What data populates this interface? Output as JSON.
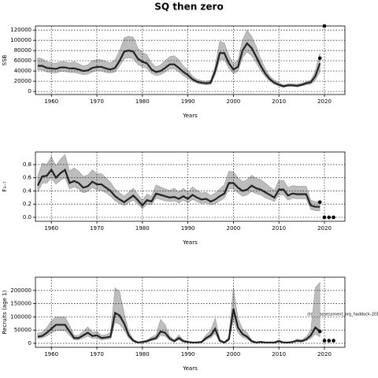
{
  "title": "SQ then zero",
  "annotation": "stock_assessment_org_haddock-201",
  "chart_data": [
    {
      "type": "line",
      "ylabel": "SSB",
      "xlabel": "Years",
      "xlim": [
        1956.5,
        2024.5
      ],
      "xticks": [
        1960,
        1970,
        1980,
        1990,
        2000,
        2010,
        2020
      ],
      "ylim": [
        -6000,
        128000
      ],
      "yticks": [
        0,
        20000,
        40000,
        60000,
        80000,
        100000,
        120000
      ],
      "grid": true,
      "color": "#222222",
      "band_color": "#bdbdbd",
      "x": [
        1957,
        1958,
        1959,
        1960,
        1961,
        1962,
        1963,
        1964,
        1965,
        1966,
        1967,
        1968,
        1969,
        1970,
        1971,
        1972,
        1973,
        1974,
        1975,
        1976,
        1977,
        1978,
        1979,
        1980,
        1981,
        1982,
        1983,
        1984,
        1985,
        1986,
        1987,
        1988,
        1989,
        1990,
        1991,
        1992,
        1993,
        1994,
        1995,
        1996,
        1997,
        1998,
        1999,
        2000,
        2001,
        2002,
        2003,
        2004,
        2005,
        2006,
        2007,
        2008,
        2009,
        2010,
        2011,
        2012,
        2013,
        2014,
        2015,
        2016,
        2017,
        2018,
        2019
      ],
      "values": [
        50000,
        50000,
        46000,
        45000,
        44000,
        47000,
        47000,
        45000,
        45000,
        43000,
        40000,
        41000,
        46000,
        48000,
        48000,
        45000,
        43000,
        46000,
        60000,
        78000,
        80000,
        78000,
        64000,
        58000,
        55000,
        43000,
        38000,
        40000,
        46000,
        53000,
        53000,
        46000,
        38000,
        32000,
        24000,
        19000,
        17000,
        16000,
        17000,
        40000,
        75000,
        75000,
        55000,
        43000,
        48000,
        80000,
        94000,
        85000,
        68000,
        50000,
        35000,
        24000,
        17000,
        13000,
        10000,
        12000,
        12000,
        11000,
        13000,
        16000,
        18000,
        30000,
        55000
      ],
      "lower": [
        42000,
        42000,
        38000,
        37000,
        36000,
        39000,
        39000,
        37000,
        37000,
        35000,
        33000,
        34000,
        38000,
        40000,
        40000,
        37000,
        36000,
        38000,
        50000,
        64000,
        66000,
        64000,
        53000,
        48000,
        45000,
        35000,
        31000,
        33000,
        38000,
        44000,
        44000,
        38000,
        31000,
        26000,
        20000,
        16000,
        14000,
        13000,
        14000,
        33000,
        62000,
        62000,
        45000,
        35000,
        39000,
        66000,
        77000,
        70000,
        56000,
        41000,
        29000,
        20000,
        14000,
        11000,
        8000,
        10000,
        10000,
        9000,
        11000,
        13000,
        14000,
        22000,
        38000
      ],
      "upper": [
        66000,
        64000,
        58000,
        56000,
        55000,
        58000,
        58000,
        56000,
        58000,
        54000,
        50000,
        52000,
        60000,
        62000,
        62000,
        58000,
        56000,
        62000,
        80000,
        105000,
        108000,
        106000,
        85000,
        76000,
        72000,
        56000,
        48000,
        52000,
        60000,
        68000,
        70000,
        62000,
        50000,
        42000,
        30000,
        24000,
        21000,
        20000,
        22000,
        50000,
        98000,
        95000,
        70000,
        54000,
        62000,
        100000,
        120000,
        108000,
        88000,
        64000,
        45000,
        30000,
        22000,
        17000,
        13000,
        15000,
        15000,
        14000,
        16000,
        19000,
        22000,
        40000,
        75000
      ],
      "points": {
        "x": [
          2019,
          2020
        ],
        "values": [
          65000,
          128000
        ]
      }
    },
    {
      "type": "line",
      "ylabel": "F₃₋₇",
      "xlabel": "Years",
      "xlim": [
        1956.5,
        2024.5
      ],
      "xticks": [
        1960,
        1970,
        1980,
        1990,
        2000,
        2010,
        2020
      ],
      "ylim": [
        -0.06,
        0.99
      ],
      "yticks": [
        {
          "value": 0,
          "label": "0.0"
        },
        0.2,
        0.4,
        0.6,
        0.8
      ],
      "grid": true,
      "color": "#222222",
      "band_color": "#bdbdbd",
      "x": [
        1957,
        1958,
        1959,
        1960,
        1961,
        1962,
        1963,
        1964,
        1965,
        1966,
        1967,
        1968,
        1969,
        1970,
        1971,
        1972,
        1973,
        1974,
        1975,
        1976,
        1977,
        1978,
        1979,
        1980,
        1981,
        1982,
        1983,
        1984,
        1985,
        1986,
        1987,
        1988,
        1989,
        1990,
        1991,
        1992,
        1993,
        1994,
        1995,
        1996,
        1997,
        1998,
        1999,
        2000,
        2001,
        2002,
        2003,
        2004,
        2005,
        2006,
        2007,
        2008,
        2009,
        2010,
        2011,
        2012,
        2013,
        2014,
        2015,
        2016,
        2017,
        2018,
        2019
      ],
      "values": [
        0.48,
        0.62,
        0.63,
        0.72,
        0.6,
        0.67,
        0.72,
        0.52,
        0.55,
        0.52,
        0.45,
        0.47,
        0.54,
        0.5,
        0.5,
        0.45,
        0.4,
        0.32,
        0.27,
        0.23,
        0.28,
        0.33,
        0.26,
        0.18,
        0.26,
        0.24,
        0.36,
        0.34,
        0.32,
        0.3,
        0.31,
        0.28,
        0.32,
        0.28,
        0.34,
        0.3,
        0.27,
        0.28,
        0.24,
        0.27,
        0.32,
        0.36,
        0.52,
        0.52,
        0.45,
        0.4,
        0.42,
        0.48,
        0.44,
        0.42,
        0.38,
        0.34,
        0.3,
        0.42,
        0.42,
        0.33,
        0.36,
        0.35,
        0.35,
        0.35,
        0.18,
        0.16,
        0.16
      ],
      "lower": [
        0.38,
        0.52,
        0.52,
        0.6,
        0.5,
        0.56,
        0.6,
        0.43,
        0.46,
        0.43,
        0.37,
        0.39,
        0.45,
        0.41,
        0.41,
        0.37,
        0.32,
        0.25,
        0.21,
        0.18,
        0.22,
        0.26,
        0.2,
        0.13,
        0.2,
        0.19,
        0.29,
        0.27,
        0.25,
        0.24,
        0.25,
        0.22,
        0.26,
        0.22,
        0.27,
        0.24,
        0.21,
        0.22,
        0.19,
        0.21,
        0.25,
        0.29,
        0.43,
        0.43,
        0.37,
        0.32,
        0.34,
        0.39,
        0.36,
        0.34,
        0.3,
        0.27,
        0.24,
        0.34,
        0.34,
        0.26,
        0.29,
        0.28,
        0.28,
        0.28,
        0.12,
        0.1,
        0.1
      ],
      "upper": [
        0.62,
        0.82,
        0.8,
        0.92,
        0.78,
        0.88,
        0.95,
        0.7,
        0.75,
        0.7,
        0.62,
        0.64,
        0.72,
        0.66,
        0.66,
        0.6,
        0.53,
        0.43,
        0.37,
        0.32,
        0.38,
        0.44,
        0.35,
        0.26,
        0.35,
        0.32,
        0.49,
        0.46,
        0.43,
        0.41,
        0.44,
        0.38,
        0.44,
        0.38,
        0.46,
        0.41,
        0.37,
        0.38,
        0.33,
        0.37,
        0.43,
        0.49,
        0.7,
        0.69,
        0.6,
        0.54,
        0.57,
        0.64,
        0.59,
        0.57,
        0.52,
        0.46,
        0.41,
        0.56,
        0.56,
        0.45,
        0.48,
        0.47,
        0.47,
        0.47,
        0.26,
        0.24,
        0.24
      ],
      "points": {
        "x": [
          2019,
          2020,
          2021,
          2022
        ],
        "values": [
          0.23,
          0,
          0,
          0
        ]
      }
    },
    {
      "type": "line",
      "ylabel": "Recruits (age 1)",
      "xlabel": "Years",
      "xlim": [
        1956.5,
        2024.5
      ],
      "xticks": [
        1960,
        1970,
        1980,
        1990,
        2000,
        2010,
        2020
      ],
      "ylim": [
        -15000,
        250000
      ],
      "yticks": [
        0,
        50000,
        100000,
        150000,
        200000
      ],
      "grid": true,
      "color": "#222222",
      "band_color": "#bdbdbd",
      "x": [
        1957,
        1958,
        1959,
        1960,
        1961,
        1962,
        1963,
        1964,
        1965,
        1966,
        1967,
        1968,
        1969,
        1970,
        1971,
        1972,
        1973,
        1974,
        1975,
        1976,
        1977,
        1978,
        1979,
        1980,
        1981,
        1982,
        1983,
        1984,
        1985,
        1986,
        1987,
        1988,
        1989,
        1990,
        1991,
        1992,
        1993,
        1994,
        1995,
        1996,
        1997,
        1998,
        1999,
        2000,
        2001,
        2002,
        2003,
        2004,
        2005,
        2006,
        2007,
        2008,
        2009,
        2010,
        2011,
        2012,
        2013,
        2014,
        2015,
        2016,
        2017,
        2018,
        2019
      ],
      "values": [
        25000,
        28000,
        40000,
        55000,
        70000,
        70000,
        70000,
        45000,
        20000,
        20000,
        30000,
        40000,
        28000,
        30000,
        20000,
        22000,
        25000,
        115000,
        105000,
        75000,
        30000,
        10000,
        3000,
        5000,
        8000,
        15000,
        20000,
        45000,
        40000,
        18000,
        8000,
        20000,
        8000,
        5000,
        3000,
        3000,
        5000,
        20000,
        30000,
        55000,
        10000,
        3000,
        15000,
        130000,
        60000,
        35000,
        25000,
        8000,
        3000,
        5000,
        3000,
        3000,
        3000,
        8000,
        3000,
        3000,
        5000,
        10000,
        8000,
        15000,
        30000,
        60000,
        45000
      ],
      "lower": [
        18000,
        20000,
        28000,
        38000,
        48000,
        48000,
        48000,
        30000,
        13000,
        13000,
        20000,
        27000,
        19000,
        20000,
        13000,
        15000,
        17000,
        80000,
        72000,
        50000,
        20000,
        6000,
        2000,
        3000,
        5000,
        10000,
        13000,
        30000,
        27000,
        12000,
        5000,
        13000,
        5000,
        3000,
        2000,
        2000,
        3000,
        13000,
        20000,
        37000,
        6000,
        2000,
        10000,
        90000,
        40000,
        23000,
        16000,
        5000,
        2000,
        3000,
        2000,
        2000,
        2000,
        5000,
        2000,
        2000,
        3000,
        6000,
        5000,
        10000,
        18000,
        35000,
        25000
      ],
      "upper": [
        38000,
        42000,
        60000,
        85000,
        100000,
        100000,
        100000,
        68000,
        30000,
        30000,
        45000,
        62000,
        42000,
        45000,
        30000,
        33000,
        40000,
        210000,
        195000,
        115000,
        45000,
        16000,
        5000,
        8000,
        13000,
        24000,
        32000,
        90000,
        70000,
        28000,
        13000,
        32000,
        13000,
        8000,
        5000,
        5000,
        8000,
        32000,
        48000,
        95000,
        16000,
        5000,
        25000,
        210000,
        95000,
        55000,
        40000,
        13000,
        5000,
        8000,
        5000,
        5000,
        5000,
        13000,
        5000,
        5000,
        8000,
        16000,
        13000,
        25000,
        50000,
        210000,
        230000
      ],
      "points": {
        "x": [
          2019,
          2020,
          2021,
          2022
        ],
        "values": [
          45000,
          10000,
          10000,
          10000
        ]
      }
    }
  ]
}
